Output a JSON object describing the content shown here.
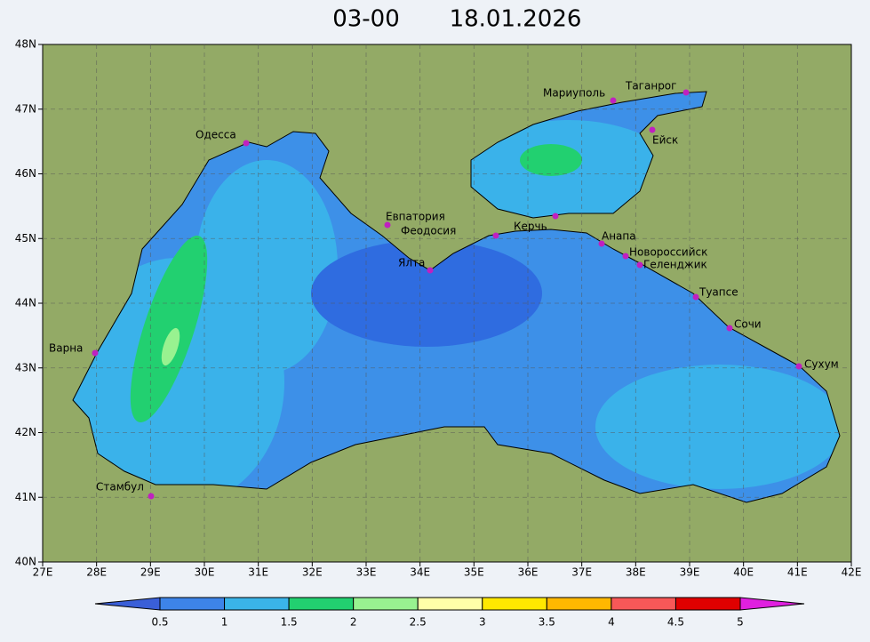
{
  "header": {
    "time": "03-00",
    "date": "18.01.2026"
  },
  "map": {
    "lat_labels": [
      "40N",
      "41N",
      "42N",
      "43N",
      "44N",
      "45N",
      "46N",
      "47N",
      "48N"
    ],
    "lon_labels": [
      "27E",
      "28E",
      "29E",
      "30E",
      "31E",
      "32E",
      "33E",
      "34E",
      "35E",
      "36E",
      "37E",
      "38E",
      "39E",
      "40E",
      "41E",
      "42E"
    ],
    "cities": [
      "Одесса",
      "Евпатория",
      "Феодосия",
      "Керчь",
      "Ялта",
      "Анапа",
      "Новороссийск",
      "Геленджик",
      "Туапсе",
      "Сочи",
      "Сухум",
      "Мариуполь",
      "Таганрог",
      "Ейск",
      "Варна",
      "Стамбул"
    ]
  },
  "colorbar": {
    "labels": [
      "0.5",
      "1",
      "1.5",
      "2",
      "2.5",
      "3",
      "3.5",
      "4",
      "4.5",
      "5"
    ]
  }
}
